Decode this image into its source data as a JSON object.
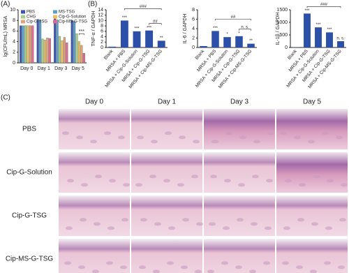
{
  "chart_data": [
    {
      "type": "bar",
      "label": "(A)",
      "y_label": "lg(CFU/mL) MRSA",
      "categories": [
        "Day 0",
        "Day 1",
        "Day 3",
        "Day 5"
      ],
      "series": [
        {
          "name": "PBS",
          "color": "#3a55b4",
          "values": [
            7,
            8.2,
            8.3,
            8.0
          ]
        },
        {
          "name": "MS-TSG",
          "color": "#5aa0c8",
          "values": [
            7,
            8.0,
            8.1,
            7.8
          ]
        },
        {
          "name": "CHG",
          "color": "#a6d08a",
          "values": [
            7,
            4.5,
            5.0,
            5.5
          ]
        },
        {
          "name": "Cip-G-Solution",
          "color": "#f0c060",
          "values": [
            7,
            4.3,
            4.2,
            4.0
          ]
        },
        {
          "name": "Cip-G-TSG",
          "color": "#e3a07a",
          "values": [
            7,
            4.7,
            4.8,
            3.3
          ]
        },
        {
          "name": "Cip-MS-G-TSG",
          "color": "#e06b8c",
          "values": [
            7,
            4.6,
            3.8,
            1.8
          ]
        }
      ],
      "ylim": [
        0,
        10
      ],
      "yticks": [
        0,
        2,
        4,
        6,
        8,
        10
      ],
      "comparisons": [
        {
          "category": 3,
          "from": 3,
          "to": 5,
          "label": "***"
        }
      ]
    },
    {
      "type": "bar",
      "label": "(B)",
      "y_label": "TNF-α / GAPDH",
      "color": "#2c4fa8",
      "categories": [
        "Blank",
        "MRSA + PBS",
        "MRSA + Cip-G-Solution",
        "MRSA + Cip-G-TSG",
        "MRSA + Cip-MS-G-TSG"
      ],
      "values": [
        0.3,
        10,
        6,
        6.3,
        2.5
      ],
      "significance": [
        null,
        "***",
        "***",
        "***",
        "**"
      ],
      "ylim": [
        0,
        14
      ],
      "yticks": [
        0,
        2,
        4,
        6,
        8,
        10,
        12,
        14
      ],
      "comparisons": [
        {
          "from": 3,
          "to": 4,
          "label": "##"
        },
        {
          "from": 1,
          "to": 4,
          "label": "###"
        }
      ]
    },
    {
      "type": "bar",
      "y_label": "IL-6 / GAPDH",
      "color": "#2c4fa8",
      "categories": [
        "Blank",
        "MRSA + PBS",
        "MRSA + Cip-G-Solution",
        "MRSA + Cip-G-TSG",
        "MRSA + Cip-MS-G-TSG"
      ],
      "values": [
        0.3,
        3.5,
        2.2,
        2.4,
        0.8
      ],
      "significance": [
        null,
        "***",
        "*",
        "*",
        "**"
      ],
      "ylim": [
        0,
        8
      ],
      "yticks": [
        0,
        2,
        4,
        6,
        8
      ],
      "comparisons": [
        {
          "from": 3,
          "to": 4,
          "label": "n. s."
        },
        {
          "from": 1,
          "to": 4,
          "label": "##"
        }
      ]
    },
    {
      "type": "bar",
      "y_label": "IL-1β / GAPDH",
      "color": "#2c4fa8",
      "categories": [
        "Blank",
        "MRSA + PBS",
        "MRSA + Cip-G-Solution",
        "MRSA + Cip-G-TSG",
        "MRSA + Cip-MS-G-TSG"
      ],
      "values": [
        10,
        1350,
        800,
        600,
        250
      ],
      "significance": [
        null,
        "***",
        "***",
        "***",
        "n. s."
      ],
      "ylim": [
        0,
        1500
      ],
      "yticks": [
        0,
        500,
        1000,
        1500
      ],
      "comparisons": [
        {
          "from": 1,
          "to": 4,
          "label": "###"
        }
      ]
    }
  ],
  "histology": {
    "label": "(C)",
    "columns": [
      "Day 0",
      "Day 1",
      "Day 3",
      "Day 5"
    ],
    "rows": [
      "PBS",
      "Cip-G-Solution",
      "Cip-G-TSG",
      "Cip-MS-G-TSG"
    ]
  }
}
